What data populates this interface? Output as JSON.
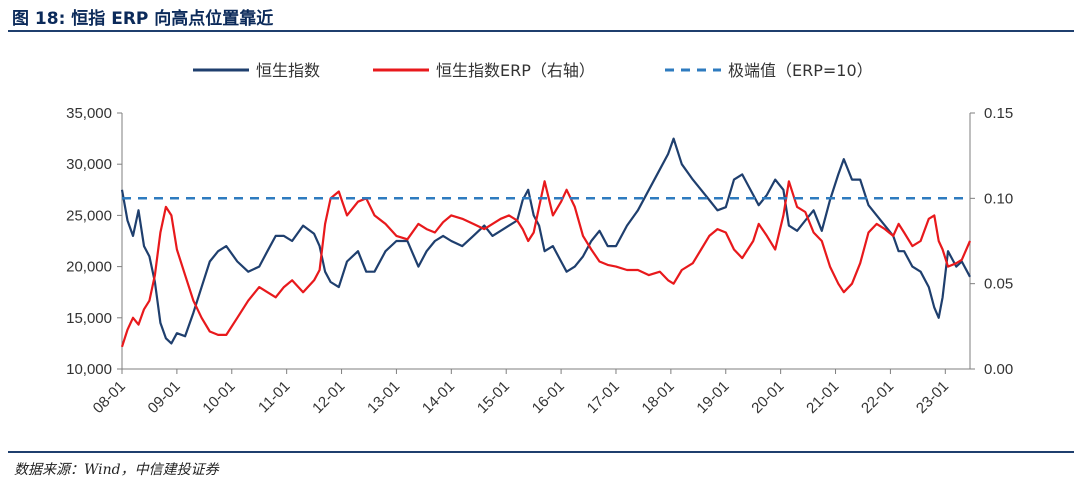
{
  "title": "图 18: 恒指 ERP 向高点位置靠近",
  "source": "数据来源：Wind，中信建投证券",
  "chart_data": {
    "type": "line",
    "title": "图 18: 恒指 ERP 向高点位置靠近",
    "colors": {
      "hsi": "#1f3f6e",
      "erp": "#e8191c",
      "extreme": "#2e7bbf"
    },
    "x_labels": [
      "08-01",
      "09-01",
      "10-01",
      "11-01",
      "12-01",
      "13-01",
      "14-01",
      "15-01",
      "16-01",
      "17-01",
      "18-01",
      "19-01",
      "20-01",
      "21-01",
      "22-01",
      "23-01"
    ],
    "x_range": [
      2008.0,
      2023.45
    ],
    "y_left": {
      "range": [
        10000,
        35000
      ],
      "ticks": [
        10000,
        15000,
        20000,
        25000,
        30000,
        35000
      ],
      "tick_labels": [
        "10,000",
        "15,000",
        "20,000",
        "25,000",
        "30,000",
        "35,000"
      ]
    },
    "y_right": {
      "range": [
        0.0,
        0.15
      ],
      "ticks": [
        0.0,
        0.05,
        0.1,
        0.15
      ],
      "tick_labels": [
        "0.00",
        "0.05",
        "0.10",
        "0.15"
      ]
    },
    "legend": [
      "恒生指数",
      "恒生指数ERP（右轴）",
      "极端值（ERP=10）"
    ],
    "extreme_value": 0.1,
    "series": [
      {
        "name": "恒生指数",
        "axis": "left",
        "x": [
          2008.0,
          2008.1,
          2008.2,
          2008.3,
          2008.4,
          2008.5,
          2008.6,
          2008.7,
          2008.8,
          2008.9,
          2009.0,
          2009.15,
          2009.3,
          2009.45,
          2009.6,
          2009.75,
          2009.9,
          2010.1,
          2010.3,
          2010.5,
          2010.65,
          2010.8,
          2010.95,
          2011.1,
          2011.3,
          2011.5,
          2011.6,
          2011.7,
          2011.8,
          2011.95,
          2012.1,
          2012.3,
          2012.45,
          2012.6,
          2012.8,
          2013.0,
          2013.2,
          2013.4,
          2013.55,
          2013.7,
          2013.85,
          2014.0,
          2014.2,
          2014.4,
          2014.6,
          2014.75,
          2014.9,
          2015.05,
          2015.2,
          2015.3,
          2015.4,
          2015.5,
          2015.6,
          2015.7,
          2015.85,
          2016.0,
          2016.1,
          2016.25,
          2016.4,
          2016.55,
          2016.7,
          2016.85,
          2017.0,
          2017.2,
          2017.4,
          2017.6,
          2017.8,
          2017.95,
          2018.05,
          2018.2,
          2018.4,
          2018.55,
          2018.7,
          2018.85,
          2019.0,
          2019.15,
          2019.3,
          2019.5,
          2019.6,
          2019.75,
          2019.9,
          2020.05,
          2020.15,
          2020.3,
          2020.45,
          2020.6,
          2020.75,
          2020.9,
          2021.05,
          2021.15,
          2021.3,
          2021.45,
          2021.6,
          2021.75,
          2021.9,
          2022.05,
          2022.15,
          2022.25,
          2022.4,
          2022.55,
          2022.7,
          2022.8,
          2022.88,
          2022.95,
          2023.05,
          2023.2,
          2023.3,
          2023.45
        ],
        "values": [
          27500,
          24500,
          23000,
          25500,
          22000,
          21000,
          18500,
          14500,
          13000,
          12500,
          13500,
          13200,
          15500,
          18000,
          20500,
          21500,
          22000,
          20500,
          19500,
          20000,
          21500,
          23000,
          23000,
          22500,
          24000,
          23200,
          22000,
          19500,
          18500,
          18000,
          20500,
          21500,
          19500,
          19500,
          21500,
          22500,
          22500,
          20000,
          21500,
          22500,
          23000,
          22500,
          22000,
          23000,
          24000,
          23000,
          23500,
          24000,
          24500,
          26500,
          27500,
          25000,
          24000,
          21500,
          22000,
          20500,
          19500,
          20000,
          21000,
          22500,
          23500,
          22000,
          22000,
          24000,
          25500,
          27500,
          29500,
          31000,
          32500,
          30000,
          28500,
          27500,
          26500,
          25500,
          25800,
          28500,
          29000,
          27000,
          26000,
          27000,
          28500,
          27500,
          24000,
          23500,
          24500,
          25500,
          23500,
          26500,
          29000,
          30500,
          28500,
          28500,
          26000,
          25000,
          24000,
          23000,
          21500,
          21500,
          20000,
          19500,
          18000,
          16000,
          15000,
          17000,
          21500,
          20000,
          20500,
          19000
        ]
      },
      {
        "name": "恒生指数ERP（右轴）",
        "axis": "right",
        "x": [
          2008.0,
          2008.1,
          2008.2,
          2008.3,
          2008.4,
          2008.5,
          2008.6,
          2008.7,
          2008.8,
          2008.9,
          2009.0,
          2009.15,
          2009.3,
          2009.45,
          2009.6,
          2009.75,
          2009.9,
          2010.1,
          2010.3,
          2010.5,
          2010.65,
          2010.8,
          2010.95,
          2011.1,
          2011.3,
          2011.5,
          2011.6,
          2011.7,
          2011.8,
          2011.95,
          2012.1,
          2012.3,
          2012.45,
          2012.6,
          2012.8,
          2013.0,
          2013.2,
          2013.4,
          2013.55,
          2013.7,
          2013.85,
          2014.0,
          2014.2,
          2014.4,
          2014.6,
          2014.75,
          2014.9,
          2015.05,
          2015.2,
          2015.3,
          2015.4,
          2015.5,
          2015.6,
          2015.7,
          2015.85,
          2016.0,
          2016.1,
          2016.25,
          2016.4,
          2016.55,
          2016.7,
          2016.85,
          2017.0,
          2017.2,
          2017.4,
          2017.6,
          2017.8,
          2017.95,
          2018.05,
          2018.2,
          2018.4,
          2018.55,
          2018.7,
          2018.85,
          2019.0,
          2019.15,
          2019.3,
          2019.5,
          2019.6,
          2019.75,
          2019.9,
          2020.05,
          2020.15,
          2020.3,
          2020.45,
          2020.6,
          2020.75,
          2020.9,
          2021.05,
          2021.15,
          2021.3,
          2021.45,
          2021.6,
          2021.75,
          2021.9,
          2022.05,
          2022.15,
          2022.25,
          2022.4,
          2022.55,
          2022.7,
          2022.8,
          2022.88,
          2022.95,
          2023.05,
          2023.2,
          2023.3,
          2023.45
        ],
        "values": [
          0.013,
          0.023,
          0.03,
          0.026,
          0.035,
          0.04,
          0.055,
          0.08,
          0.095,
          0.09,
          0.07,
          0.055,
          0.04,
          0.03,
          0.022,
          0.02,
          0.02,
          0.03,
          0.04,
          0.048,
          0.045,
          0.042,
          0.048,
          0.052,
          0.045,
          0.052,
          0.058,
          0.085,
          0.1,
          0.104,
          0.09,
          0.098,
          0.1,
          0.09,
          0.085,
          0.078,
          0.076,
          0.085,
          0.082,
          0.08,
          0.086,
          0.09,
          0.088,
          0.085,
          0.082,
          0.085,
          0.088,
          0.09,
          0.087,
          0.082,
          0.075,
          0.08,
          0.095,
          0.11,
          0.09,
          0.098,
          0.105,
          0.095,
          0.078,
          0.07,
          0.063,
          0.061,
          0.06,
          0.058,
          0.058,
          0.055,
          0.057,
          0.052,
          0.05,
          0.058,
          0.062,
          0.07,
          0.078,
          0.082,
          0.08,
          0.07,
          0.065,
          0.075,
          0.085,
          0.078,
          0.07,
          0.09,
          0.11,
          0.095,
          0.092,
          0.08,
          0.075,
          0.06,
          0.05,
          0.045,
          0.05,
          0.062,
          0.08,
          0.085,
          0.082,
          0.078,
          0.085,
          0.08,
          0.072,
          0.075,
          0.088,
          0.09,
          0.075,
          0.07,
          0.06,
          0.062,
          0.064,
          0.075
        ]
      },
      {
        "name": "极端值（ERP=10）",
        "axis": "right",
        "style": "dashed",
        "x": [
          2008.0,
          2023.45
        ],
        "values": [
          0.1,
          0.1
        ]
      }
    ]
  }
}
